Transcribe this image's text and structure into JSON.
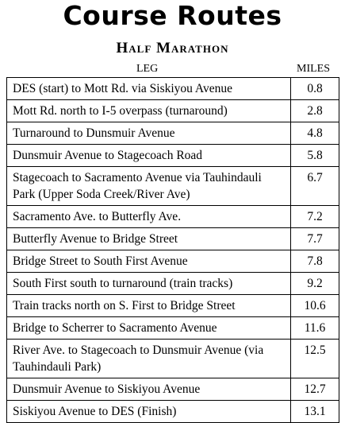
{
  "header": {
    "title": "Course Routes",
    "subtitle": "Half Marathon"
  },
  "table": {
    "columns": [
      "LEG",
      "MILES"
    ],
    "rows": [
      [
        "DES (start) to Mott Rd. via Siskiyou Avenue",
        0.8
      ],
      [
        "Mott Rd. north to I-5 overpass (turnaround)",
        2.8
      ],
      [
        "Turnaround to Dunsmuir Avenue",
        4.8
      ],
      [
        "Dunsmuir Avenue to Stagecoach Road",
        5.8
      ],
      [
        "Stagecoach to Sacramento Avenue via Tauhindauli Park (Upper Soda Creek/River Ave)",
        6.7
      ],
      [
        "Sacramento Ave. to Butterfly Ave.",
        7.2
      ],
      [
        "Butterfly Avenue to Bridge Street",
        7.7
      ],
      [
        "Bridge Street to South First Avenue",
        7.8
      ],
      [
        "South First south to turnaround (train tracks)",
        9.2
      ],
      [
        "Train tracks north on S. First to Bridge Street",
        10.6
      ],
      [
        "Bridge to Scherrer to Sacramento Avenue",
        11.6
      ],
      [
        "River Ave. to Stagecoach to Dunsmuir Avenue (via Tauhindauli Park)",
        12.5
      ],
      [
        "Dunsmuir Avenue to Siskiyou Avenue",
        12.7
      ],
      [
        "Siskiyou Avenue to DES (Finish)",
        13.1
      ]
    ]
  }
}
